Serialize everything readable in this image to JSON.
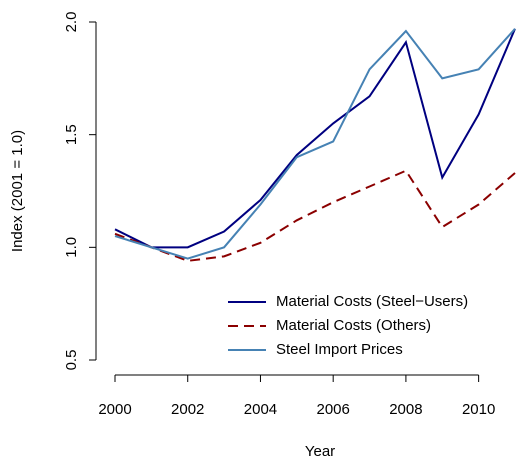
{
  "chart_data": {
    "type": "line",
    "x_label": "Year",
    "y_label": "Index (2001 = 1.0)",
    "x": [
      2000,
      2001,
      2002,
      2003,
      2004,
      2005,
      2006,
      2007,
      2008,
      2009,
      2010,
      2011
    ],
    "series": [
      {
        "name": "Material Costs (Steel−Users)",
        "color": "#000080",
        "dash": "solid",
        "values": [
          1.08,
          1.0,
          1.0,
          1.07,
          1.21,
          1.41,
          1.55,
          1.67,
          1.91,
          1.31,
          1.59,
          1.97
        ]
      },
      {
        "name": "Material Costs (Others)",
        "color": "#8B0000",
        "dash": "dashed",
        "values": [
          1.06,
          1.0,
          0.94,
          0.96,
          1.02,
          1.12,
          1.2,
          1.27,
          1.34,
          1.09,
          1.19,
          1.33
        ]
      },
      {
        "name": "Steel Import Prices",
        "color": "#4682B4",
        "dash": "solid",
        "values": [
          1.05,
          1.0,
          0.95,
          1.0,
          1.19,
          1.4,
          1.47,
          1.79,
          1.96,
          1.75,
          1.79,
          1.97
        ]
      }
    ],
    "xlim": [
      2000,
      2011
    ],
    "xticks": [
      2000,
      2002,
      2004,
      2006,
      2008,
      2010
    ],
    "ylim": [
      0.5,
      2.0
    ],
    "yticks": [
      0.5,
      {
        "value": 1.0,
        "label": "1.0"
      },
      1.5,
      {
        "value": 2.0,
        "label": "2.0"
      }
    ],
    "legend": "bottom-right",
    "grid": false
  }
}
